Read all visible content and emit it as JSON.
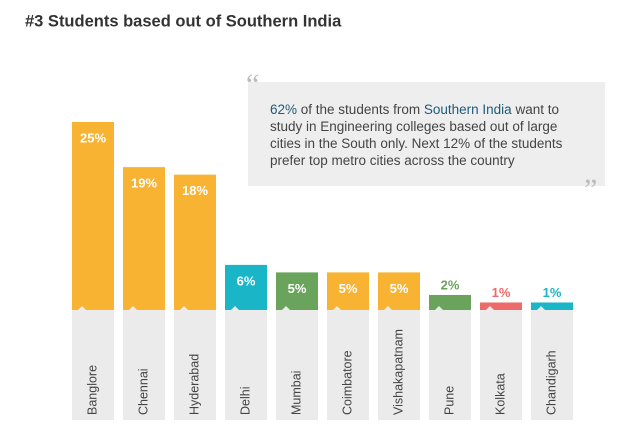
{
  "chart_data": {
    "type": "bar",
    "title": "#3 Students based out of Southern India",
    "categories": [
      "Banglore",
      "Chennai",
      "Hyderabad",
      "Delhi",
      "Mumbai",
      "Coimbatore",
      "Vishakapatnam",
      "Pune",
      "Kolkata",
      "Chandigarh"
    ],
    "values": [
      25,
      19,
      18,
      6,
      5,
      5,
      5,
      2,
      1,
      1
    ],
    "value_labels": [
      "25%",
      "19%",
      "18%",
      "6%",
      "5%",
      "5%",
      "5%",
      "2%",
      "1%",
      "1%"
    ],
    "colors": [
      "#f8b333",
      "#f8b333",
      "#f8b333",
      "#1ab6c8",
      "#6aa35c",
      "#f8b333",
      "#f8b333",
      "#6aa35c",
      "#ee6b6b",
      "#1ab6c8"
    ],
    "annotation": {
      "quote_open": "“",
      "quote_close": "”",
      "segments": [
        {
          "text": "62%",
          "emphasis": true
        },
        {
          "text": " of the students from ",
          "emphasis": false
        },
        {
          "text": "Southern India",
          "emphasis": true
        },
        {
          "text": " want to study in Engineering colleges based out of large cities in the South only. Next 12% of the students prefer top metro cities across the country",
          "emphasis": false
        }
      ]
    }
  }
}
